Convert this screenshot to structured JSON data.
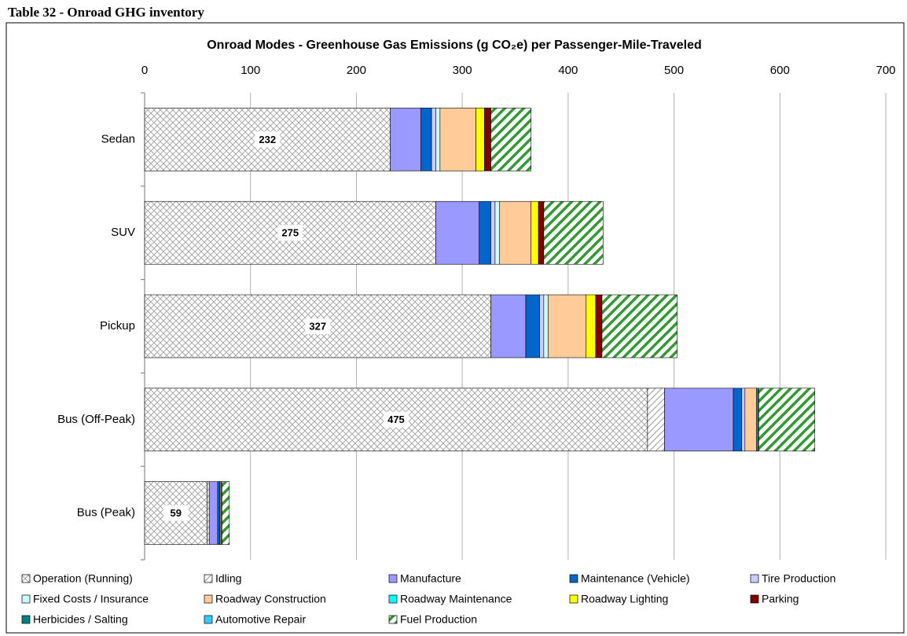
{
  "chart_data": {
    "type": "stacked-bar-horizontal",
    "caption": "Table 32 - Onroad GHG inventory",
    "title": "Onroad Modes - Greenhouse Gas Emissions (g CO₂e) per Passenger-Mile-Traveled",
    "categories": [
      "Sedan",
      "SUV",
      "Pickup",
      "Bus (Off-Peak)",
      "Bus (Peak)"
    ],
    "xlim": [
      0,
      700
    ],
    "xticks": [
      0,
      100,
      200,
      300,
      400,
      500,
      600,
      700
    ],
    "grid": true,
    "legend": "bottom",
    "series": [
      {
        "name": "Operation (Running)",
        "color": "#999999",
        "pattern": "crosshatch",
        "values": [
          232,
          275,
          327,
          475,
          59
        ]
      },
      {
        "name": "Idling",
        "color": "#999999",
        "pattern": "hatch",
        "values": [
          0,
          0,
          0,
          16,
          2
        ]
      },
      {
        "name": "Manufacture",
        "color": "#9999ff",
        "values": [
          29,
          41,
          33,
          65,
          8
        ]
      },
      {
        "name": "Maintenance (Vehicle)",
        "color": "#0066cc",
        "values": [
          10,
          11,
          13,
          8,
          2
        ]
      },
      {
        "name": "Tire Production",
        "color": "#ccccff",
        "values": [
          4,
          4,
          4,
          3,
          0
        ]
      },
      {
        "name": "Fixed Costs / Insurance",
        "color": "#ccffff",
        "values": [
          4,
          4,
          4,
          0,
          0
        ]
      },
      {
        "name": "Roadway Construction",
        "color": "#ffcc99",
        "values": [
          34,
          30,
          36,
          11,
          1
        ]
      },
      {
        "name": "Roadway Maintenance",
        "color": "#00ffff",
        "values": [
          0,
          0,
          0,
          1,
          0
        ]
      },
      {
        "name": "Roadway Lighting",
        "color": "#ffff00",
        "values": [
          8,
          7,
          9,
          0,
          0
        ]
      },
      {
        "name": "Parking",
        "color": "#800000",
        "values": [
          6,
          5,
          6,
          0,
          0
        ]
      },
      {
        "name": "Herbicides / Salting",
        "color": "#008080",
        "values": [
          0,
          0,
          0,
          1,
          1
        ]
      },
      {
        "name": "Automotive Repair",
        "color": "#33ccff",
        "values": [
          0,
          0,
          0,
          0,
          0
        ]
      },
      {
        "name": "Fuel Production",
        "color": "#339933",
        "pattern": "stripes",
        "values": [
          38,
          56,
          71,
          53,
          7
        ]
      }
    ]
  }
}
